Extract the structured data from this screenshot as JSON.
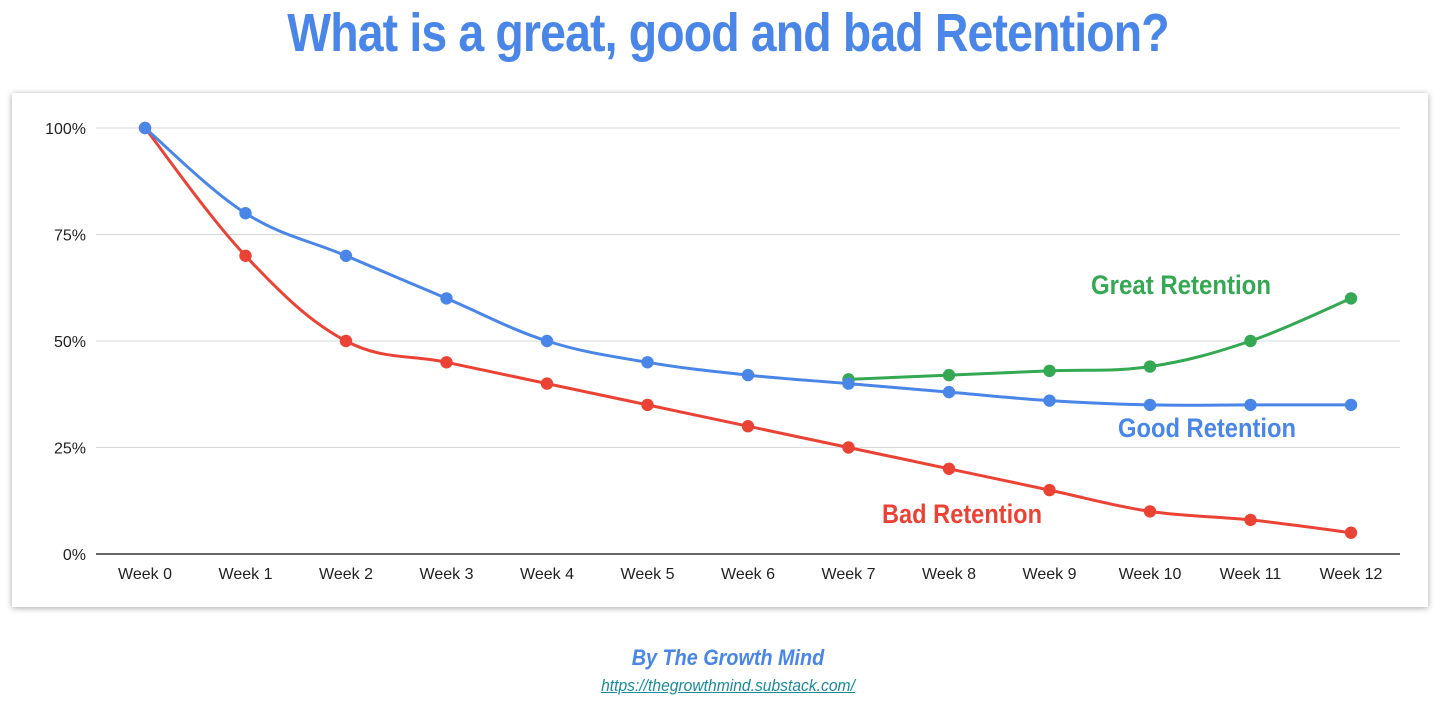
{
  "title": "What is a great, good and bad Retention?",
  "byline": "By The Growth Mind",
  "source_url": "https://thegrowthmind.substack.com/",
  "colors": {
    "title": "#4a86e8",
    "great": "#34a853",
    "good": "#4a86e8",
    "bad": "#ea4335",
    "grid": "#d9d9d9",
    "axis": "#333333",
    "link": "#1a8a9a"
  },
  "chart_data": {
    "type": "line",
    "categories": [
      "Week 0",
      "Week 1",
      "Week 2",
      "Week 3",
      "Week 4",
      "Week 5",
      "Week 6",
      "Week 7",
      "Week 8",
      "Week 9",
      "Week 10",
      "Week 11",
      "Week 12"
    ],
    "y_ticks": [
      "0%",
      "25%",
      "50%",
      "75%",
      "100%"
    ],
    "ylim": [
      0,
      100
    ],
    "y_unit": "%",
    "grid": true,
    "legend": "inline labels",
    "series": [
      {
        "name": "Good Retention",
        "color": "#4a86e8",
        "values": [
          100,
          80,
          70,
          60,
          50,
          45,
          42,
          40,
          38,
          36,
          35,
          35,
          35
        ]
      },
      {
        "name": "Bad Retention",
        "color": "#ea4335",
        "values": [
          100,
          70,
          50,
          45,
          40,
          35,
          30,
          25,
          20,
          15,
          10,
          8,
          5
        ]
      },
      {
        "name": "Great Retention",
        "color": "#34a853",
        "values": [
          null,
          null,
          null,
          null,
          null,
          null,
          null,
          41,
          42,
          43,
          44,
          50,
          60
        ]
      }
    ]
  }
}
